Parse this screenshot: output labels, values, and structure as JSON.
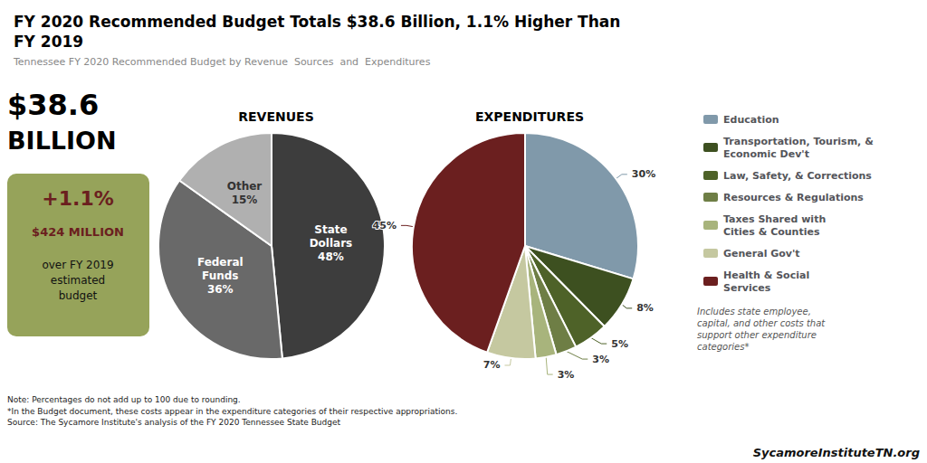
{
  "title": "FY 2020 Recommended Budget Totals $38.6 Billion, 1.1% Higher Than\nFY 2019",
  "subtitle": "Tennessee FY 2020 Recommended Budget by Revenue  Sources  and  Expenditures",
  "annotations": [
    "$38.6",
    "BILLION",
    "+1.1%",
    "$424 MILLION",
    "over FY 2019\nestimated\nbudget",
    "Note: Percentages do not add up to 100 due to rounding.\n*In the Budget document, these costs appear in the expenditure categories of their respective appropriations.\nSource: The Sycamore Institute's analysis of the FY 2020 Tennessee State Budget",
    "SycamoreInstituteTN.org"
  ],
  "chart_data": [
    {
      "type": "pie",
      "title": "REVENUES",
      "categories": [
        "State\nDollars",
        "Federal\nFunds",
        "Other"
      ],
      "values": [
        48,
        36,
        15
      ],
      "value_labels": [
        "48%",
        "36%",
        "15%"
      ],
      "colors": [
        "#3d3d3d",
        "#696969",
        "#b0b0b0"
      ],
      "data_labels": true
    },
    {
      "type": "pie",
      "title": "EXPENDITURES",
      "categories": [
        "Education",
        "Transportation, Tourism, &\nEconomic Dev't",
        "Law, Safety, & Corrections",
        "Resources & Regulations",
        "Taxes Shared with\nCities & Counties",
        "General Gov't",
        "Health & Social\nServices"
      ],
      "values": [
        30,
        8,
        5,
        3,
        3,
        7,
        45
      ],
      "value_labels": [
        "30%",
        "8%",
        "5%",
        "3%",
        "3%",
        "7%",
        "45%"
      ],
      "colors": [
        "#8099aa",
        "#3d5020",
        "#4e6228",
        "#6e7e45",
        "#a8b47c",
        "#c5c8a0",
        "#6b1f1f"
      ],
      "data_labels": true,
      "legend": "right",
      "annotations": [
        "Includes state employee,\ncapital, and other costs that\nsupport other expenditure\ncategories*"
      ]
    }
  ]
}
